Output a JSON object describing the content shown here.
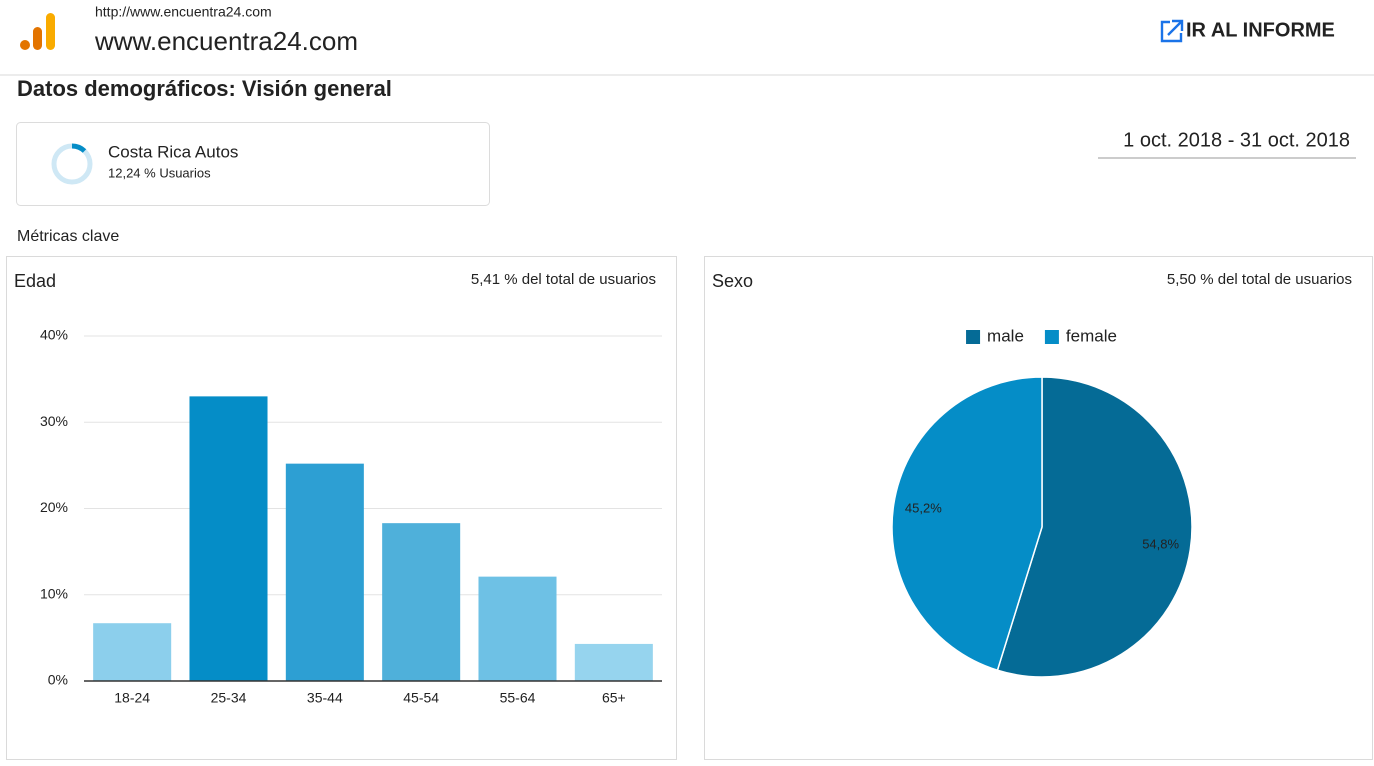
{
  "header": {
    "url": "http://www.encuentra24.com",
    "site_name": "www.encuentra24.com",
    "report_link": "IR AL INFORME"
  },
  "page_title": "Datos demográficos: Visión general",
  "segment": {
    "name": "Costa Rica Autos",
    "share": "12,24 % Usuarios"
  },
  "date_range": "1 oct. 2018 - 31 oct. 2018",
  "section_label": "Métricas clave",
  "chart_data": [
    {
      "type": "bar",
      "title": "Edad",
      "subtitle": "5,41 % del total de usuarios",
      "categories": [
        "18-24",
        "25-34",
        "35-44",
        "45-54",
        "55-64",
        "65+"
      ],
      "values": [
        6.7,
        33.0,
        25.2,
        18.3,
        12.1,
        4.3
      ],
      "colors": [
        "#8ccfec",
        "#058dc7",
        "#2d9fd3",
        "#4fb0da",
        "#6ec1e5",
        "#96d4ee"
      ],
      "ylim": [
        0,
        40
      ],
      "yticks": [
        {
          "value": 0,
          "label": "0%"
        },
        {
          "value": 10,
          "label": "10%"
        },
        {
          "value": 20,
          "label": "20%"
        },
        {
          "value": 30,
          "label": "30%"
        },
        {
          "value": 40,
          "label": "40%"
        }
      ],
      "grid": true
    },
    {
      "type": "pie",
      "title": "Sexo",
      "subtitle": "5,50 % del total de usuarios",
      "categories": [
        "male",
        "female"
      ],
      "values": [
        54.8,
        45.2
      ],
      "value_labels": [
        "54,8%",
        "45,2%"
      ],
      "colors": [
        "#056b96",
        "#058dc7"
      ]
    }
  ]
}
